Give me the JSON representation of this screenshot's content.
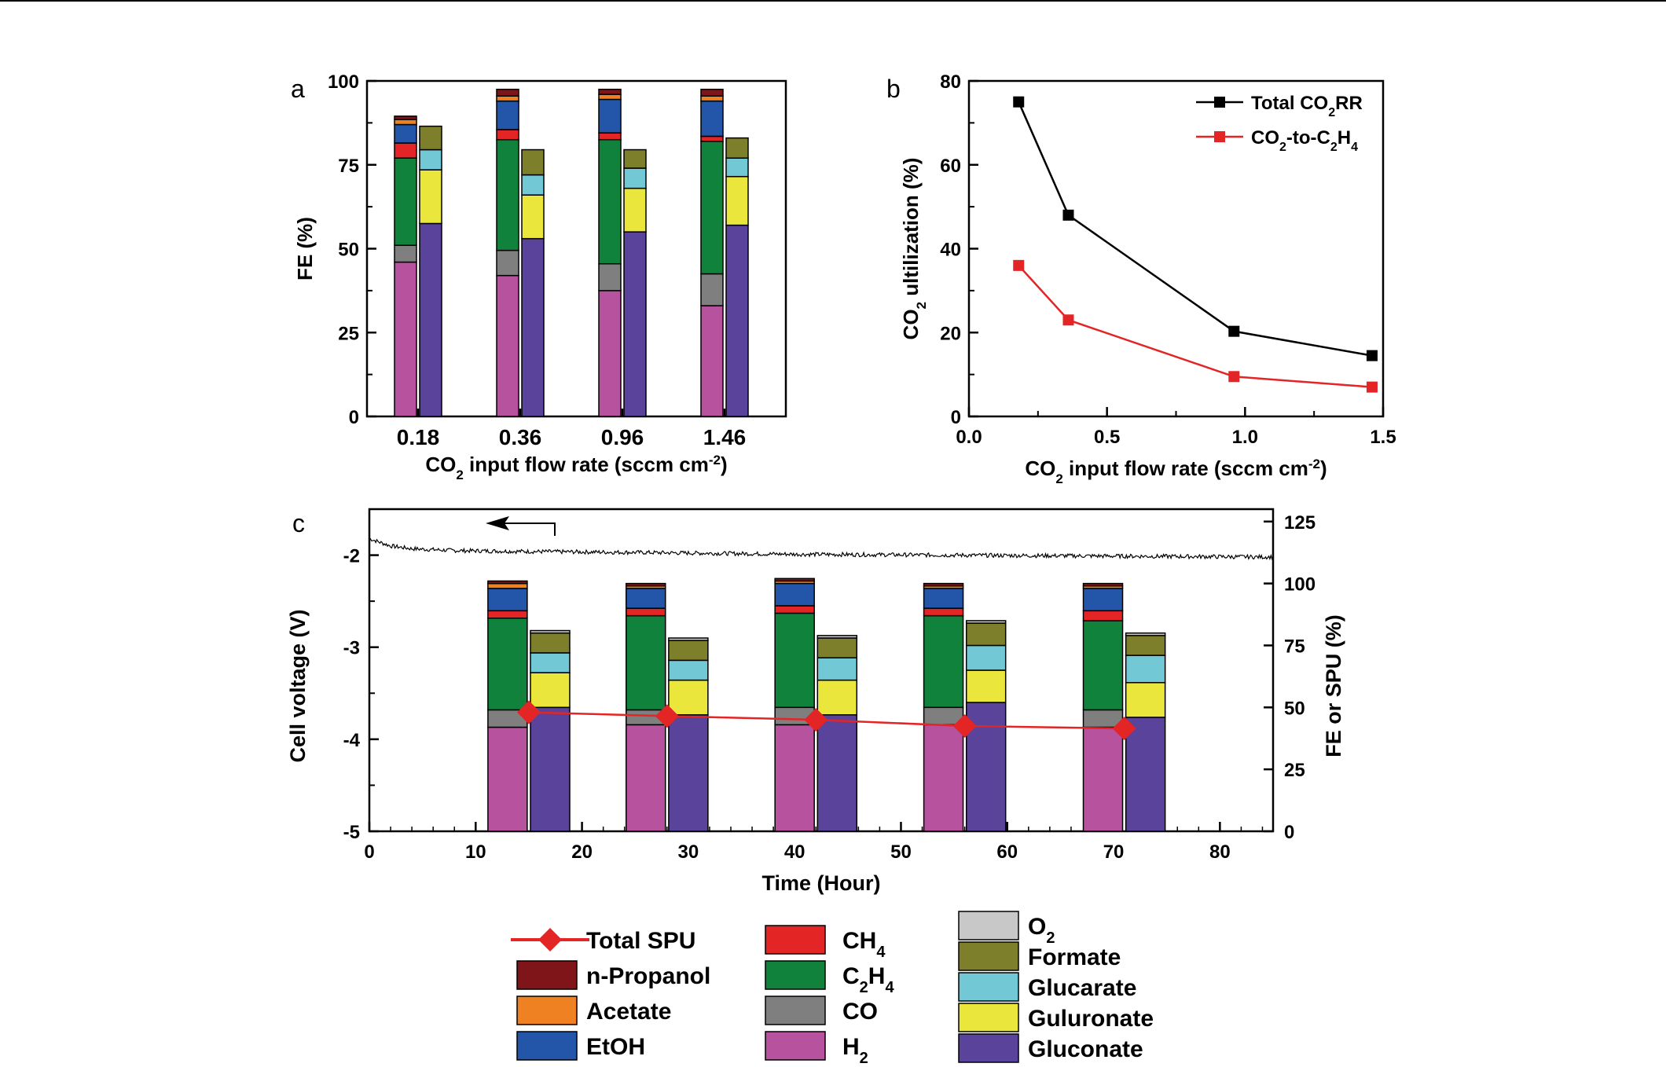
{
  "panel_labels": {
    "a": "a",
    "b": "b",
    "c": "c"
  },
  "colors": {
    "n-Propanol": "#7f1518",
    "Acetate": "#f08122",
    "EtOH": "#2356a8",
    "CH4": "#e42526",
    "C2H4": "#11823b",
    "CO": "#7f7f7f",
    "H2": "#b7539e",
    "O2": "#c8c8c8",
    "Formate": "#7e7f2a",
    "Glucarate": "#72c8d5",
    "Guluronate": "#ebe63c",
    "Gluconate": "#5a439a",
    "Total SPU": "#e42526",
    "Total CO2RR": "#000000",
    "CO2-to-C2H4": "#e42526"
  },
  "chart_data": [
    {
      "id": "a",
      "type": "bar",
      "stacked": true,
      "xlabel": {
        "pre": "CO",
        "sub": "2",
        "post": " input flow rate (sccm cm",
        "sup": "-2",
        "end": ")"
      },
      "ylabel": "FE (%)",
      "ylim": [
        0,
        100
      ],
      "yticks": [
        "0",
        "25",
        "50",
        "75",
        "100"
      ],
      "categories": [
        "0.18",
        "0.36",
        "0.96",
        "1.46"
      ],
      "cathode_series": [
        {
          "name": "H2",
          "values": [
            46,
            42,
            37.5,
            33
          ]
        },
        {
          "name": "CO",
          "values": [
            5,
            7.5,
            8,
            9.5
          ]
        },
        {
          "name": "C2H4",
          "values": [
            26,
            33,
            37,
            39.5
          ]
        },
        {
          "name": "CH4",
          "values": [
            4.5,
            3,
            2,
            1.5
          ]
        },
        {
          "name": "EtOH",
          "values": [
            5.5,
            8.5,
            10,
            10.5
          ]
        },
        {
          "name": "Acetate",
          "values": [
            1.5,
            1.5,
            1.5,
            1.5
          ]
        },
        {
          "name": "n-Propanol",
          "values": [
            1,
            2,
            1.5,
            2
          ]
        }
      ],
      "anode_series": [
        {
          "name": "Gluconate",
          "values": [
            57.5,
            53,
            55,
            57
          ]
        },
        {
          "name": "Guluronate",
          "values": [
            16,
            13,
            13,
            14.5
          ]
        },
        {
          "name": "Glucarate",
          "values": [
            6,
            6,
            6,
            5.5
          ]
        },
        {
          "name": "Formate",
          "values": [
            7,
            7.5,
            5.5,
            6
          ]
        },
        {
          "name": "O2",
          "values": [
            0,
            0,
            0,
            0
          ]
        }
      ]
    },
    {
      "id": "b",
      "type": "line",
      "xlabel": {
        "pre": "CO",
        "sub": "2",
        "post": " input flow rate (sccm cm",
        "sup": "-2",
        "end": ")"
      },
      "ylabel": {
        "pre": "CO",
        "sub": "2",
        "post": " ultilization (%)"
      },
      "xlim": [
        0,
        1.5
      ],
      "ylim": [
        0,
        80
      ],
      "xticks": [
        "0.0",
        "0.5",
        "1.0",
        "1.5"
      ],
      "yticks": [
        "0",
        "20",
        "40",
        "60",
        "80"
      ],
      "x": [
        0.18,
        0.36,
        0.96,
        1.46
      ],
      "legend_position": "top-right",
      "series": [
        {
          "name": "Total CO2RR",
          "label": {
            "pre": "Total CO",
            "sub": "2",
            "post": "RR"
          },
          "values": [
            75,
            48,
            20.3,
            14.5
          ]
        },
        {
          "name": "CO2-to-C2H4",
          "label": {
            "pre": "CO",
            "sub": "2",
            "mid": "-to-C",
            "sub2": "2",
            "post": "H",
            "sub3": "4"
          },
          "values": [
            36,
            23,
            9.5,
            7
          ]
        }
      ]
    },
    {
      "id": "c",
      "type": "bar+line",
      "stacked": true,
      "xlabel": "Time (Hour)",
      "ylabel_left": "Cell voltage (V)",
      "ylabel_right": "FE or SPU (%)",
      "xlim": [
        0,
        85
      ],
      "xticks": [
        "0",
        "10",
        "20",
        "30",
        "40",
        "50",
        "60",
        "70",
        "80"
      ],
      "ylim_left": [
        -5,
        -1.5
      ],
      "yticks_left": [
        "-5",
        "-4",
        "-3",
        "-2"
      ],
      "ylim_right": [
        0,
        130
      ],
      "yticks_right": [
        "0",
        "25",
        "50",
        "75",
        "100",
        "125"
      ],
      "bar_groups": [
        {
          "cathode_x": 13,
          "anode_x": 17
        },
        {
          "cathode_x": 26,
          "anode_x": 30
        },
        {
          "cathode_x": 40,
          "anode_x": 44
        },
        {
          "cathode_x": 54,
          "anode_x": 58
        },
        {
          "cathode_x": 69,
          "anode_x": 73
        }
      ],
      "cathode_series": [
        {
          "name": "H2",
          "values": [
            42,
            43,
            43,
            43,
            42
          ]
        },
        {
          "name": "CO",
          "values": [
            7,
            6,
            7,
            7,
            7
          ]
        },
        {
          "name": "C2H4",
          "values": [
            37,
            38,
            38,
            37,
            36
          ]
        },
        {
          "name": "CH4",
          "values": [
            3,
            3,
            3,
            3,
            4
          ]
        },
        {
          "name": "EtOH",
          "values": [
            9,
            8,
            9,
            8,
            9
          ]
        },
        {
          "name": "Acetate",
          "values": [
            2,
            1,
            1,
            1,
            1
          ]
        },
        {
          "name": "n-Propanol",
          "values": [
            1,
            1,
            1,
            1,
            1
          ]
        }
      ],
      "anode_series": [
        {
          "name": "Gluconate",
          "values": [
            50,
            47,
            47,
            52,
            46
          ]
        },
        {
          "name": "Guluronate",
          "values": [
            14,
            14,
            14,
            13,
            14
          ]
        },
        {
          "name": "Glucarate",
          "values": [
            8,
            8,
            9,
            10,
            11
          ]
        },
        {
          "name": "Formate",
          "values": [
            8,
            8,
            8,
            9,
            8
          ]
        },
        {
          "name": "O2",
          "values": [
            1,
            1,
            1,
            1,
            1
          ]
        }
      ],
      "spu_series": {
        "name": "Total SPU",
        "x": [
          15,
          28,
          42,
          56,
          71
        ],
        "values": [
          48,
          46.5,
          45,
          42.5,
          41.5
        ]
      },
      "voltage_series": {
        "name": "Cell voltage",
        "x": [
          0,
          1,
          2,
          4,
          8,
          15,
          25,
          40,
          55,
          70,
          85
        ],
        "values": [
          -1.82,
          -1.86,
          -1.9,
          -1.93,
          -1.95,
          -1.96,
          -1.97,
          -1.99,
          -2.0,
          -2.01,
          -2.02
        ]
      }
    }
  ],
  "legend": {
    "col1": [
      {
        "key": "Total SPU",
        "type": "line",
        "text": "Total SPU"
      },
      {
        "key": "n-Propanol",
        "type": "box",
        "text": "n-Propanol"
      },
      {
        "key": "Acetate",
        "type": "box",
        "text": "Acetate"
      },
      {
        "key": "EtOH",
        "type": "box",
        "text": "EtOH"
      }
    ],
    "col2": [
      {
        "key": "CH4",
        "type": "box",
        "text": "CH",
        "sub": "4"
      },
      {
        "key": "C2H4",
        "type": "box",
        "text": "C",
        "sub": "2",
        "text2": "H",
        "sub2": "4"
      },
      {
        "key": "CO",
        "type": "box",
        "text": "CO"
      },
      {
        "key": "H2",
        "type": "box",
        "text": "H",
        "sub": "2"
      }
    ],
    "col3": [
      {
        "key": "O2",
        "type": "box",
        "text": "O",
        "sub": "2"
      },
      {
        "key": "Formate",
        "type": "box",
        "text": "Formate"
      },
      {
        "key": "Glucarate",
        "type": "box",
        "text": "Glucarate"
      },
      {
        "key": "Guluronate",
        "type": "box",
        "text": "Guluronate"
      },
      {
        "key": "Gluconate",
        "type": "box",
        "text": "Gluconate"
      }
    ]
  }
}
